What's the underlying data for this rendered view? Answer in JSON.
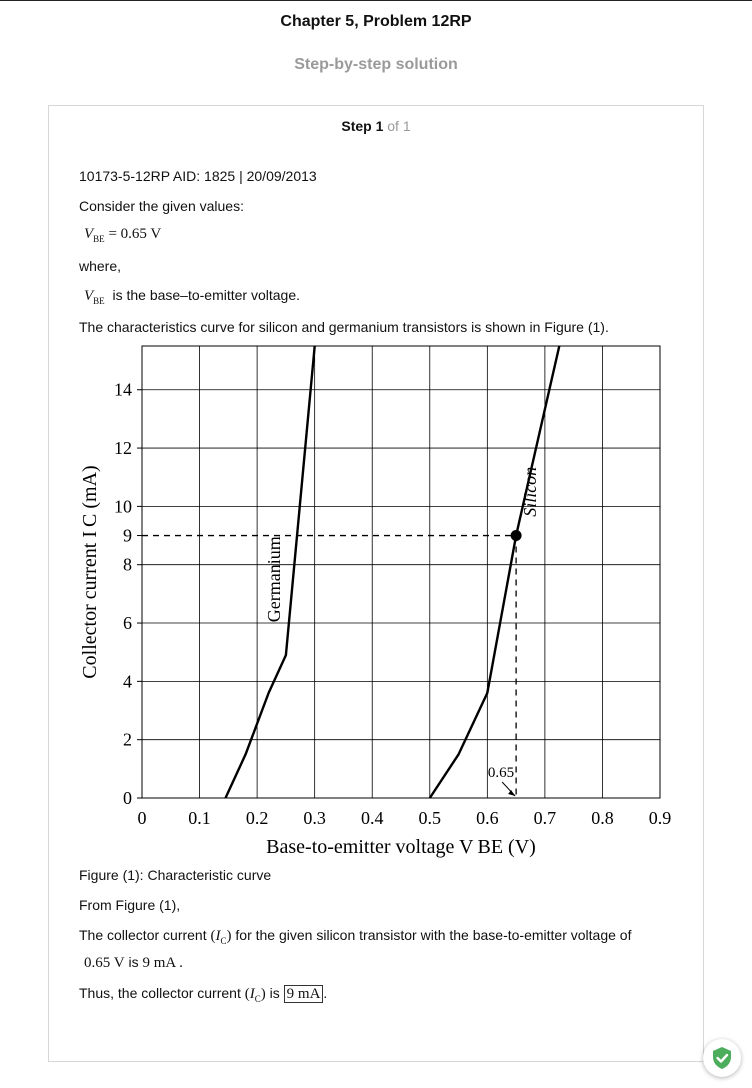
{
  "header": {
    "title": "Chapter 5, Problem 12RP",
    "subtitle": "Step-by-step solution"
  },
  "step": {
    "label": "Step 1",
    "of": "of 1"
  },
  "content": {
    "meta": "10173-5-12RP AID: 1825 | 20/09/2013",
    "consider": "Consider the given values:",
    "vbe_symbol": "V",
    "vbe_sub": "BE",
    "vbe_value": "= 0.65 V",
    "where": "where,",
    "vbe_desc": "is the base–to-emitter voltage.",
    "curve_intro": "The characteristics curve for silicon and germanium transistors is shown in Figure (1).",
    "figure_caption": "Figure (1): Characteristic curve",
    "from_figure": "From Figure (1),",
    "collector_line_a": "The collector current",
    "collector_line_b": "for the given silicon transistor with the base-to-emitter voltage of",
    "ic_symbol": "I",
    "ic_sub": "C",
    "collector_value_line_v": "0.65 V",
    "collector_value_line_is": "is",
    "collector_value_line_i": "9 mA .",
    "thus_a": "Thus, the collector current",
    "thus_is": "is",
    "thus_answer": "9 mA",
    "thus_end": "."
  },
  "chart_data": {
    "type": "line",
    "xlabel": "Base-to-emitter voltage V BE (V)",
    "ylabel": "Collector current I C (mA)",
    "xlim": [
      0,
      0.9
    ],
    "ylim": [
      0,
      15.5
    ],
    "xticks": [
      "0",
      "0.1",
      "0.2",
      "0.3",
      "0.4",
      "0.5",
      "0.6",
      "0.7",
      "0.8",
      "0.9"
    ],
    "yticks": [
      "0",
      "2",
      "4",
      "6",
      "8",
      "9",
      "10",
      "12",
      "14"
    ],
    "grid": true,
    "series": [
      {
        "name": "Germanium",
        "x": [
          0.145,
          0.18,
          0.22,
          0.25,
          0.3
        ],
        "y": [
          0,
          1.5,
          3.6,
          4.9,
          15.5
        ]
      },
      {
        "name": "Silicon",
        "x": [
          0.5,
          0.55,
          0.6,
          0.65,
          0.725
        ],
        "y": [
          0,
          1.5,
          3.6,
          9,
          15.5
        ]
      }
    ],
    "annotations": [
      {
        "text": "0.65",
        "x": 0.65,
        "y": 0
      },
      {
        "marker_point": [
          0.65,
          9
        ]
      }
    ]
  },
  "colors": {
    "accent_green": "#4cae5c",
    "muted": "#9a9a9a"
  }
}
